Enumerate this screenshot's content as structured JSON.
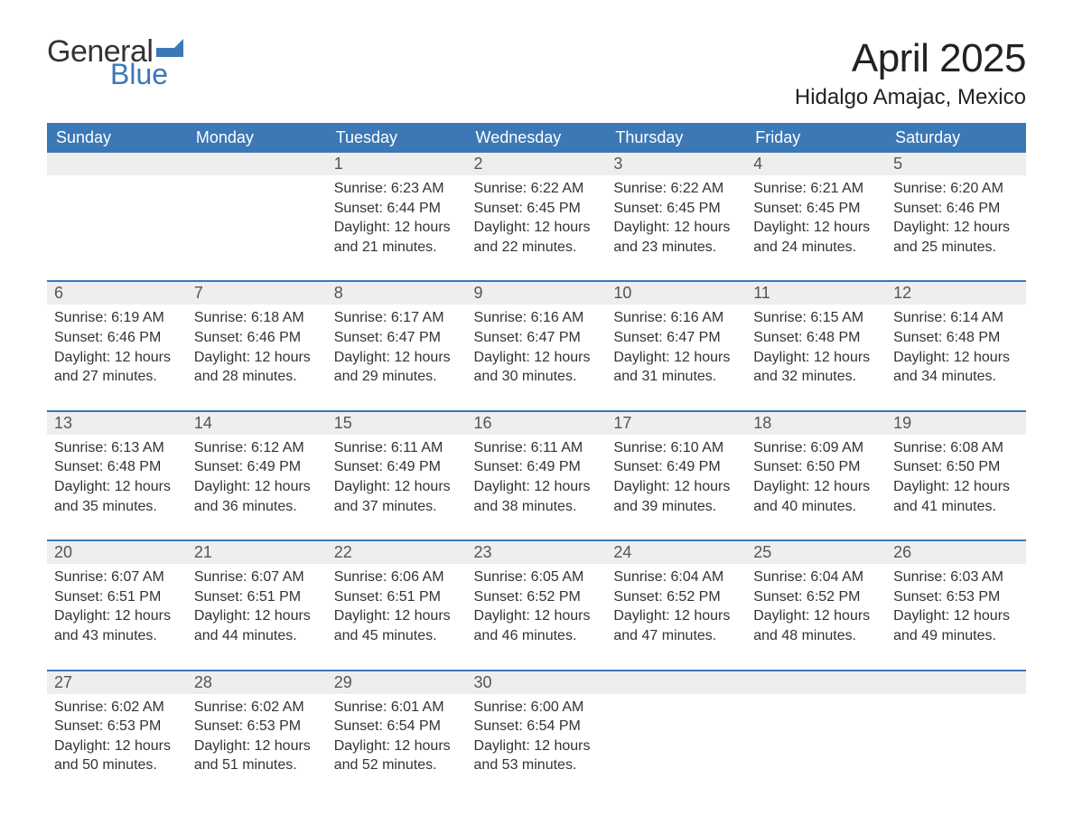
{
  "brand": {
    "word1": "General",
    "word2": "Blue",
    "word1_color": "#333333",
    "word2_color": "#3b78b5",
    "flag_color": "#3b78b5"
  },
  "title": "April 2025",
  "location": "Hidalgo Amajac, Mexico",
  "colors": {
    "header_bg": "#3b78b5",
    "header_text": "#ffffff",
    "daynum_bg": "#eeeeee",
    "daynum_border": "#3b78b5",
    "body_text": "#333333",
    "daynum_text": "#555555",
    "page_bg": "#ffffff"
  },
  "fonts": {
    "title_size_pt": 33,
    "location_size_pt": 18,
    "header_size_pt": 14,
    "daynum_size_pt": 14,
    "cell_size_pt": 12
  },
  "weekdays": [
    "Sunday",
    "Monday",
    "Tuesday",
    "Wednesday",
    "Thursday",
    "Friday",
    "Saturday"
  ],
  "weeks": [
    [
      null,
      null,
      {
        "n": "1",
        "sunrise": "Sunrise: 6:23 AM",
        "sunset": "Sunset: 6:44 PM",
        "dl1": "Daylight: 12 hours",
        "dl2": "and 21 minutes."
      },
      {
        "n": "2",
        "sunrise": "Sunrise: 6:22 AM",
        "sunset": "Sunset: 6:45 PM",
        "dl1": "Daylight: 12 hours",
        "dl2": "and 22 minutes."
      },
      {
        "n": "3",
        "sunrise": "Sunrise: 6:22 AM",
        "sunset": "Sunset: 6:45 PM",
        "dl1": "Daylight: 12 hours",
        "dl2": "and 23 minutes."
      },
      {
        "n": "4",
        "sunrise": "Sunrise: 6:21 AM",
        "sunset": "Sunset: 6:45 PM",
        "dl1": "Daylight: 12 hours",
        "dl2": "and 24 minutes."
      },
      {
        "n": "5",
        "sunrise": "Sunrise: 6:20 AM",
        "sunset": "Sunset: 6:46 PM",
        "dl1": "Daylight: 12 hours",
        "dl2": "and 25 minutes."
      }
    ],
    [
      {
        "n": "6",
        "sunrise": "Sunrise: 6:19 AM",
        "sunset": "Sunset: 6:46 PM",
        "dl1": "Daylight: 12 hours",
        "dl2": "and 27 minutes."
      },
      {
        "n": "7",
        "sunrise": "Sunrise: 6:18 AM",
        "sunset": "Sunset: 6:46 PM",
        "dl1": "Daylight: 12 hours",
        "dl2": "and 28 minutes."
      },
      {
        "n": "8",
        "sunrise": "Sunrise: 6:17 AM",
        "sunset": "Sunset: 6:47 PM",
        "dl1": "Daylight: 12 hours",
        "dl2": "and 29 minutes."
      },
      {
        "n": "9",
        "sunrise": "Sunrise: 6:16 AM",
        "sunset": "Sunset: 6:47 PM",
        "dl1": "Daylight: 12 hours",
        "dl2": "and 30 minutes."
      },
      {
        "n": "10",
        "sunrise": "Sunrise: 6:16 AM",
        "sunset": "Sunset: 6:47 PM",
        "dl1": "Daylight: 12 hours",
        "dl2": "and 31 minutes."
      },
      {
        "n": "11",
        "sunrise": "Sunrise: 6:15 AM",
        "sunset": "Sunset: 6:48 PM",
        "dl1": "Daylight: 12 hours",
        "dl2": "and 32 minutes."
      },
      {
        "n": "12",
        "sunrise": "Sunrise: 6:14 AM",
        "sunset": "Sunset: 6:48 PM",
        "dl1": "Daylight: 12 hours",
        "dl2": "and 34 minutes."
      }
    ],
    [
      {
        "n": "13",
        "sunrise": "Sunrise: 6:13 AM",
        "sunset": "Sunset: 6:48 PM",
        "dl1": "Daylight: 12 hours",
        "dl2": "and 35 minutes."
      },
      {
        "n": "14",
        "sunrise": "Sunrise: 6:12 AM",
        "sunset": "Sunset: 6:49 PM",
        "dl1": "Daylight: 12 hours",
        "dl2": "and 36 minutes."
      },
      {
        "n": "15",
        "sunrise": "Sunrise: 6:11 AM",
        "sunset": "Sunset: 6:49 PM",
        "dl1": "Daylight: 12 hours",
        "dl2": "and 37 minutes."
      },
      {
        "n": "16",
        "sunrise": "Sunrise: 6:11 AM",
        "sunset": "Sunset: 6:49 PM",
        "dl1": "Daylight: 12 hours",
        "dl2": "and 38 minutes."
      },
      {
        "n": "17",
        "sunrise": "Sunrise: 6:10 AM",
        "sunset": "Sunset: 6:49 PM",
        "dl1": "Daylight: 12 hours",
        "dl2": "and 39 minutes."
      },
      {
        "n": "18",
        "sunrise": "Sunrise: 6:09 AM",
        "sunset": "Sunset: 6:50 PM",
        "dl1": "Daylight: 12 hours",
        "dl2": "and 40 minutes."
      },
      {
        "n": "19",
        "sunrise": "Sunrise: 6:08 AM",
        "sunset": "Sunset: 6:50 PM",
        "dl1": "Daylight: 12 hours",
        "dl2": "and 41 minutes."
      }
    ],
    [
      {
        "n": "20",
        "sunrise": "Sunrise: 6:07 AM",
        "sunset": "Sunset: 6:51 PM",
        "dl1": "Daylight: 12 hours",
        "dl2": "and 43 minutes."
      },
      {
        "n": "21",
        "sunrise": "Sunrise: 6:07 AM",
        "sunset": "Sunset: 6:51 PM",
        "dl1": "Daylight: 12 hours",
        "dl2": "and 44 minutes."
      },
      {
        "n": "22",
        "sunrise": "Sunrise: 6:06 AM",
        "sunset": "Sunset: 6:51 PM",
        "dl1": "Daylight: 12 hours",
        "dl2": "and 45 minutes."
      },
      {
        "n": "23",
        "sunrise": "Sunrise: 6:05 AM",
        "sunset": "Sunset: 6:52 PM",
        "dl1": "Daylight: 12 hours",
        "dl2": "and 46 minutes."
      },
      {
        "n": "24",
        "sunrise": "Sunrise: 6:04 AM",
        "sunset": "Sunset: 6:52 PM",
        "dl1": "Daylight: 12 hours",
        "dl2": "and 47 minutes."
      },
      {
        "n": "25",
        "sunrise": "Sunrise: 6:04 AM",
        "sunset": "Sunset: 6:52 PM",
        "dl1": "Daylight: 12 hours",
        "dl2": "and 48 minutes."
      },
      {
        "n": "26",
        "sunrise": "Sunrise: 6:03 AM",
        "sunset": "Sunset: 6:53 PM",
        "dl1": "Daylight: 12 hours",
        "dl2": "and 49 minutes."
      }
    ],
    [
      {
        "n": "27",
        "sunrise": "Sunrise: 6:02 AM",
        "sunset": "Sunset: 6:53 PM",
        "dl1": "Daylight: 12 hours",
        "dl2": "and 50 minutes."
      },
      {
        "n": "28",
        "sunrise": "Sunrise: 6:02 AM",
        "sunset": "Sunset: 6:53 PM",
        "dl1": "Daylight: 12 hours",
        "dl2": "and 51 minutes."
      },
      {
        "n": "29",
        "sunrise": "Sunrise: 6:01 AM",
        "sunset": "Sunset: 6:54 PM",
        "dl1": "Daylight: 12 hours",
        "dl2": "and 52 minutes."
      },
      {
        "n": "30",
        "sunrise": "Sunrise: 6:00 AM",
        "sunset": "Sunset: 6:54 PM",
        "dl1": "Daylight: 12 hours",
        "dl2": "and 53 minutes."
      },
      null,
      null,
      null
    ]
  ]
}
